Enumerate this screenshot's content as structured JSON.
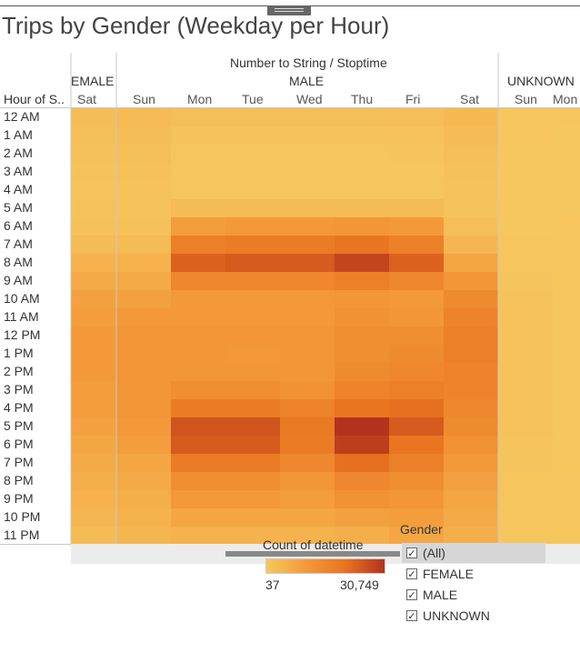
{
  "title": "Trips by Gender (Weekday per Hour)",
  "column_header": "Number to String / Stoptime",
  "row_header": "Hour of S..",
  "groups": [
    {
      "label": "FEMALE",
      "visible_label": "EMALE",
      "days": [
        "Sat"
      ]
    },
    {
      "label": "MALE",
      "days": [
        "Sun",
        "Mon",
        "Tue",
        "Wed",
        "Thu",
        "Fri",
        "Sat"
      ]
    },
    {
      "label": "UNKNOWN",
      "days": [
        "Sun",
        "Mon"
      ]
    }
  ],
  "legend": {
    "title": "Count of datetime",
    "min_label": "37",
    "max_label": "30,749"
  },
  "filter": {
    "title": "Gender",
    "items": [
      {
        "label": "(All)",
        "checked": true,
        "selected": true
      },
      {
        "label": "FEMALE",
        "checked": true,
        "selected": false
      },
      {
        "label": "MALE",
        "checked": true,
        "selected": false
      },
      {
        "label": "UNKNOWN",
        "checked": true,
        "selected": false
      }
    ]
  },
  "colors": {
    "low": "#f6c75e",
    "mid": "#f39a3a",
    "high": "#e9731f",
    "max": "#b3321d"
  },
  "chart_data": {
    "type": "heatmap",
    "title": "Trips by Gender (Weekday per Hour)",
    "xlabel": "Number to String / Stoptime",
    "ylabel": "Hour of S..",
    "value_label": "Count of datetime",
    "value_range": [
      37,
      30749
    ],
    "columns": [
      "FEMALE Sat",
      "MALE Sun",
      "MALE Mon",
      "MALE Tue",
      "MALE Wed",
      "MALE Thu",
      "MALE Fri",
      "MALE Sat",
      "UNKNOWN Sun",
      "UNKNOWN Mon"
    ],
    "rows": [
      "12 AM",
      "1 AM",
      "2 AM",
      "3 AM",
      "4 AM",
      "5 AM",
      "6 AM",
      "7 AM",
      "8 AM",
      "9 AM",
      "10 AM",
      "11 AM",
      "12 PM",
      "1 PM",
      "2 PM",
      "3 PM",
      "4 PM",
      "5 PM",
      "6 PM",
      "7 PM",
      "8 PM",
      "9 PM",
      "10 PM",
      "11 PM"
    ],
    "values": [
      [
        2500,
        3000,
        2000,
        2000,
        2000,
        2000,
        2200,
        3500,
        300,
        200
      ],
      [
        2000,
        2500,
        1000,
        1000,
        1000,
        1000,
        1200,
        2800,
        200,
        100
      ],
      [
        1500,
        2000,
        600,
        600,
        600,
        600,
        800,
        2200,
        150,
        80
      ],
      [
        1000,
        1500,
        400,
        400,
        400,
        400,
        500,
        1500,
        100,
        60
      ],
      [
        800,
        1000,
        500,
        500,
        500,
        500,
        600,
        1000,
        80,
        50
      ],
      [
        900,
        1000,
        3000,
        3000,
        3000,
        3000,
        3000,
        1200,
        100,
        60
      ],
      [
        1500,
        1500,
        10000,
        11000,
        11000,
        12000,
        11000,
        2000,
        150,
        200
      ],
      [
        3000,
        3000,
        18000,
        19000,
        19000,
        21000,
        18000,
        4000,
        300,
        400
      ],
      [
        5000,
        5000,
        24000,
        25000,
        25000,
        28000,
        24000,
        8000,
        500,
        600
      ],
      [
        7000,
        7000,
        16000,
        16000,
        16000,
        18000,
        16000,
        12000,
        700,
        500
      ],
      [
        9000,
        9000,
        11000,
        11000,
        11000,
        12000,
        11000,
        15000,
        900,
        400
      ],
      [
        10000,
        11000,
        11000,
        11000,
        11000,
        13000,
        12000,
        17000,
        1000,
        400
      ],
      [
        11000,
        12000,
        12000,
        12000,
        12000,
        14000,
        14000,
        18000,
        1100,
        400
      ],
      [
        11000,
        12000,
        12000,
        11000,
        12000,
        14000,
        15000,
        18000,
        1100,
        400
      ],
      [
        11000,
        12000,
        12000,
        12000,
        12000,
        15000,
        16000,
        17000,
        1100,
        400
      ],
      [
        10000,
        12000,
        14000,
        14000,
        13000,
        17000,
        18000,
        17000,
        1000,
        400
      ],
      [
        10000,
        12000,
        19000,
        19000,
        17000,
        21000,
        22000,
        16000,
        1000,
        500
      ],
      [
        9000,
        11000,
        26000,
        26000,
        20000,
        30749,
        25000,
        15000,
        900,
        600
      ],
      [
        8000,
        10000,
        25000,
        25000,
        19000,
        29000,
        21000,
        13000,
        800,
        600
      ],
      [
        7000,
        8000,
        19000,
        19000,
        16000,
        22000,
        18000,
        11000,
        700,
        500
      ],
      [
        6000,
        7000,
        14000,
        14000,
        12000,
        16000,
        14000,
        9000,
        600,
        400
      ],
      [
        5000,
        6000,
        11000,
        11000,
        10000,
        13000,
        12000,
        8000,
        500,
        300
      ],
      [
        4000,
        5000,
        8000,
        8000,
        8000,
        9000,
        10000,
        7000,
        400,
        250
      ],
      [
        3000,
        4000,
        5000,
        5000,
        5000,
        6000,
        8000,
        6000,
        300,
        200
      ]
    ]
  }
}
